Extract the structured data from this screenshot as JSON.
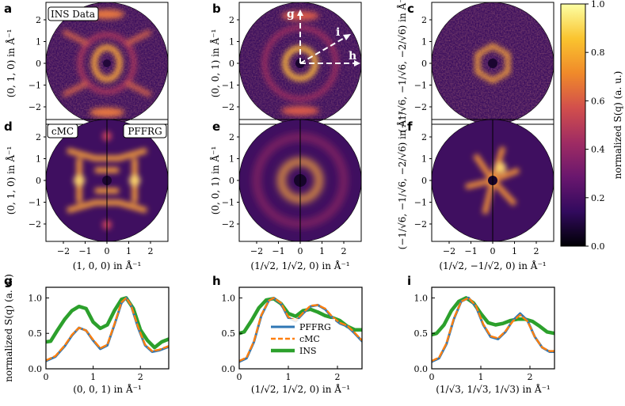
{
  "colors": {
    "pffrg": "#2f77b4",
    "cmc": "#ff7f0e",
    "ins": "#2ca02c"
  },
  "panels": {
    "a": "a",
    "b": "b",
    "c": "c",
    "d": "d",
    "e": "e",
    "f": "f",
    "g": "g",
    "h": "h",
    "i": "i"
  },
  "badges": {
    "ins_data": "INS Data",
    "cmc": "cMC",
    "pffrg": "PFFRG"
  },
  "vectors": {
    "g": "g",
    "h": "h",
    "i": "i"
  },
  "map_axes": {
    "ylabel_row1_a": "(0, 1, 0) in Å⁻¹",
    "ylabel_row1_b": "(0, 0, 1) in Å⁻¹",
    "ylabel_row1_c": "(−1/√6, −1/√6, −2/√6) in Å⁻¹",
    "ylabel_row2_d": "(0, 1, 0) in Å⁻¹",
    "ylabel_row2_e": "(0, 0, 1) in Å⁻¹",
    "ylabel_row2_f": "(−1/√6, −1/√6, −2/√6) in Å⁻¹",
    "xlabel_d": "(1, 0, 0) in Å⁻¹",
    "xlabel_e": "(1/√2, 1/√2, 0) in Å⁻¹",
    "xlabel_f": "(1/√2, −1/√2, 0) in Å⁻¹",
    "y_ticks": [
      "2",
      "1",
      "0",
      "−1",
      "−2"
    ],
    "x_ticks": [
      "−2",
      "−1",
      "0",
      "1",
      "2"
    ]
  },
  "colorbar": {
    "label": "normalized S(q) (a. u.)",
    "ticks": [
      "0.0",
      "0.2",
      "0.4",
      "0.6",
      "0.8",
      "1.0"
    ],
    "stops": [
      "#000004",
      "#320a5e",
      "#6a176e",
      "#a02c63",
      "#d24f4c",
      "#f08a2a",
      "#fac42f",
      "#fcffa4"
    ]
  },
  "chart_data": [
    {
      "type": "line",
      "panel": "g",
      "xlabel": "(0, 0, 1) in Å⁻¹",
      "ylabel": "normalized S(q) (a. u.)",
      "xlim": [
        0,
        2.6
      ],
      "ylim": [
        0,
        1.15
      ],
      "x_ticks": [
        0,
        1,
        2
      ],
      "y_ticks": [
        "0.0",
        "0.5",
        "1.0"
      ],
      "legend": null,
      "series": [
        {
          "name": "PFFRG",
          "style": "solid",
          "x": [
            0,
            0.2,
            0.4,
            0.55,
            0.7,
            0.85,
            1.0,
            1.15,
            1.3,
            1.45,
            1.6,
            1.7,
            1.8,
            1.95,
            2.1,
            2.25,
            2.4,
            2.6
          ],
          "values": [
            0.11,
            0.17,
            0.32,
            0.47,
            0.58,
            0.54,
            0.4,
            0.28,
            0.33,
            0.62,
            0.93,
            1.0,
            0.9,
            0.58,
            0.33,
            0.24,
            0.26,
            0.31
          ]
        },
        {
          "name": "cMC",
          "style": "dashed",
          "x": [
            0,
            0.2,
            0.4,
            0.55,
            0.7,
            0.85,
            1.0,
            1.15,
            1.3,
            1.45,
            1.6,
            1.7,
            1.8,
            1.95,
            2.1,
            2.25,
            2.4,
            2.6
          ],
          "values": [
            0.12,
            0.18,
            0.33,
            0.48,
            0.58,
            0.54,
            0.41,
            0.29,
            0.34,
            0.63,
            0.94,
            1.0,
            0.9,
            0.59,
            0.34,
            0.25,
            0.27,
            0.32
          ]
        },
        {
          "name": "INS",
          "style": "thick",
          "x": [
            0,
            0.1,
            0.25,
            0.4,
            0.55,
            0.7,
            0.85,
            1.0,
            1.15,
            1.3,
            1.45,
            1.6,
            1.7,
            1.85,
            2.0,
            2.15,
            2.3,
            2.45,
            2.6
          ],
          "values": [
            0.38,
            0.39,
            0.55,
            0.7,
            0.82,
            0.88,
            0.85,
            0.66,
            0.57,
            0.62,
            0.82,
            0.98,
            1.0,
            0.85,
            0.55,
            0.4,
            0.3,
            0.38,
            0.42
          ]
        }
      ]
    },
    {
      "type": "line",
      "panel": "h",
      "xlabel": "(1/√2, 1/√2, 0) in Å⁻¹",
      "ylabel": "",
      "xlim": [
        0,
        2.5
      ],
      "ylim": [
        0,
        1.15
      ],
      "x_ticks": [
        0,
        1,
        2
      ],
      "y_ticks": [
        "0.0",
        "0.5",
        "1.0"
      ],
      "legend": "inside-lower-center",
      "series": [
        {
          "name": "PFFRG",
          "style": "solid",
          "x": [
            0,
            0.15,
            0.3,
            0.45,
            0.6,
            0.7,
            0.85,
            1.0,
            1.15,
            1.3,
            1.45,
            1.6,
            1.75,
            1.9,
            2.05,
            2.2,
            2.35,
            2.5
          ],
          "values": [
            0.1,
            0.15,
            0.38,
            0.75,
            0.96,
            1.0,
            0.92,
            0.72,
            0.67,
            0.78,
            0.88,
            0.9,
            0.84,
            0.72,
            0.64,
            0.6,
            0.5,
            0.39
          ]
        },
        {
          "name": "cMC",
          "style": "dashed",
          "x": [
            0,
            0.15,
            0.3,
            0.45,
            0.6,
            0.7,
            0.85,
            1.0,
            1.15,
            1.3,
            1.45,
            1.6,
            1.75,
            1.9,
            2.05,
            2.2,
            2.35,
            2.5
          ],
          "values": [
            0.11,
            0.16,
            0.39,
            0.76,
            0.96,
            1.0,
            0.93,
            0.73,
            0.68,
            0.79,
            0.89,
            0.9,
            0.85,
            0.73,
            0.65,
            0.61,
            0.51,
            0.4
          ]
        },
        {
          "name": "INS",
          "style": "thick",
          "x": [
            0,
            0.1,
            0.25,
            0.4,
            0.55,
            0.7,
            0.85,
            1.0,
            1.15,
            1.3,
            1.45,
            1.6,
            1.75,
            1.9,
            2.05,
            2.2,
            2.35,
            2.5
          ],
          "values": [
            0.5,
            0.52,
            0.68,
            0.86,
            0.97,
            0.99,
            0.92,
            0.78,
            0.74,
            0.82,
            0.84,
            0.8,
            0.75,
            0.72,
            0.68,
            0.6,
            0.55,
            0.55
          ]
        }
      ]
    },
    {
      "type": "line",
      "panel": "i",
      "xlabel": "(1/√3, 1/√3, 1/√3) in Å⁻¹",
      "ylabel": "",
      "xlim": [
        0,
        2.5
      ],
      "ylim": [
        0,
        1.15
      ],
      "x_ticks": [
        0,
        1,
        2
      ],
      "y_ticks": [
        "0.0",
        "0.5",
        "1.0"
      ],
      "legend": null,
      "series": [
        {
          "name": "PFFRG",
          "style": "solid",
          "x": [
            0,
            0.15,
            0.3,
            0.45,
            0.6,
            0.75,
            0.9,
            1.05,
            1.2,
            1.35,
            1.5,
            1.65,
            1.8,
            1.95,
            2.1,
            2.25,
            2.4,
            2.5
          ],
          "values": [
            0.1,
            0.15,
            0.35,
            0.7,
            0.95,
            1.0,
            0.88,
            0.62,
            0.45,
            0.42,
            0.52,
            0.68,
            0.78,
            0.68,
            0.45,
            0.3,
            0.24,
            0.24
          ]
        },
        {
          "name": "cMC",
          "style": "dashed",
          "x": [
            0,
            0.15,
            0.3,
            0.45,
            0.6,
            0.75,
            0.9,
            1.05,
            1.2,
            1.35,
            1.5,
            1.65,
            1.8,
            1.95,
            2.1,
            2.25,
            2.4,
            2.5
          ],
          "values": [
            0.11,
            0.16,
            0.36,
            0.71,
            0.95,
            1.0,
            0.89,
            0.63,
            0.46,
            0.43,
            0.53,
            0.67,
            0.76,
            0.67,
            0.45,
            0.3,
            0.25,
            0.25
          ]
        },
        {
          "name": "INS",
          "style": "thick",
          "x": [
            0,
            0.1,
            0.25,
            0.4,
            0.55,
            0.7,
            0.85,
            1.0,
            1.15,
            1.3,
            1.45,
            1.6,
            1.75,
            1.9,
            2.05,
            2.2,
            2.35,
            2.5
          ],
          "values": [
            0.48,
            0.5,
            0.62,
            0.82,
            0.95,
            1.0,
            0.93,
            0.78,
            0.65,
            0.62,
            0.64,
            0.68,
            0.7,
            0.7,
            0.67,
            0.6,
            0.52,
            0.5
          ]
        }
      ]
    }
  ]
}
